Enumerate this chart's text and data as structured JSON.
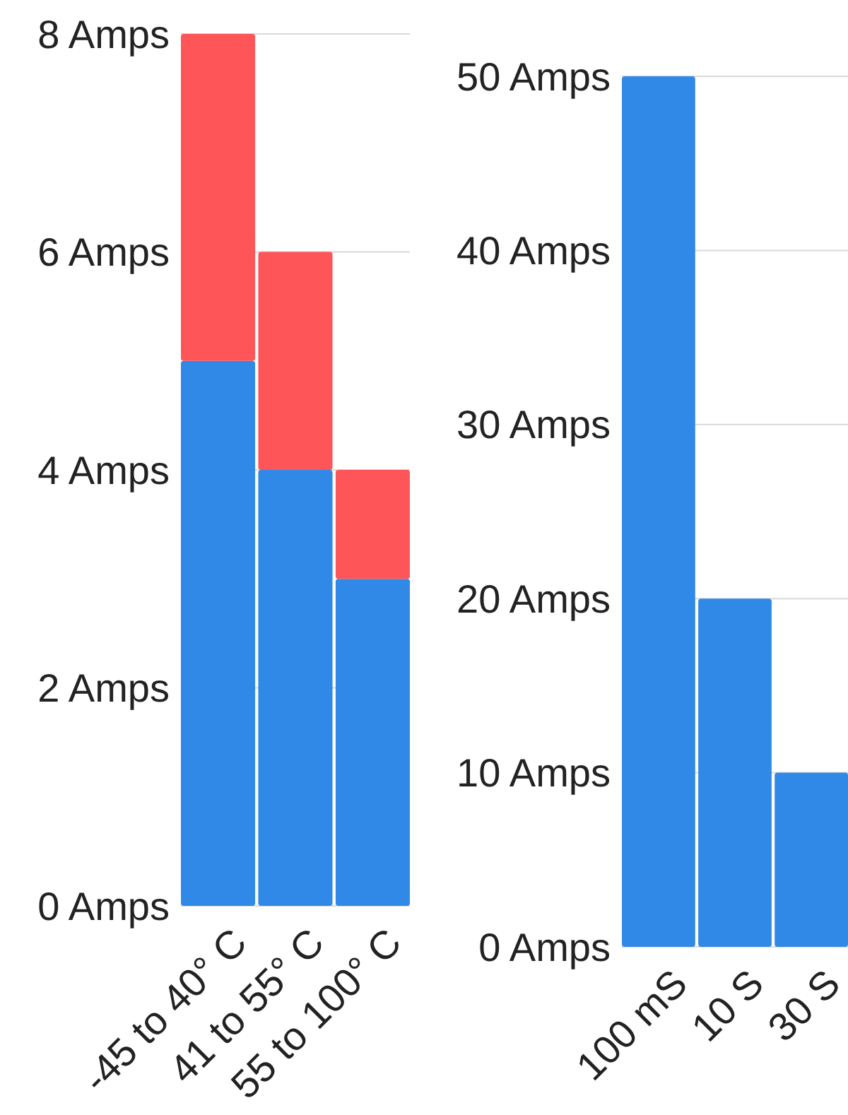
{
  "chart_data": [
    {
      "type": "bar",
      "stacked": true,
      "categories": [
        "-45 to 40° C",
        "41 to 55° C",
        "55 to 100° C"
      ],
      "series": [
        {
          "color": "#3089e6",
          "values": [
            5,
            4,
            3
          ]
        },
        {
          "color": "#fd5558",
          "values": [
            3,
            2,
            1
          ]
        }
      ],
      "ylim": [
        0,
        8
      ],
      "yticks": [
        {
          "value": 0,
          "label": "0 Amps"
        },
        {
          "value": 2,
          "label": "2 Amps"
        },
        {
          "value": 4,
          "label": "4 Amps"
        },
        {
          "value": 6,
          "label": "6 Amps"
        },
        {
          "value": 8,
          "label": "8 Amps"
        }
      ],
      "grid": "y"
    },
    {
      "type": "bar",
      "categories": [
        "100 mS",
        "10 S",
        "30 S"
      ],
      "values": [
        50,
        20,
        10
      ],
      "color": "#3089e6",
      "ylim": [
        0,
        50
      ],
      "yticks": [
        {
          "value": 0,
          "label": "0 Amps"
        },
        {
          "value": 10,
          "label": "10 Amps"
        },
        {
          "value": 20,
          "label": "20 Amps"
        },
        {
          "value": 30,
          "label": "30 Amps"
        },
        {
          "value": 40,
          "label": "40 Amps"
        },
        {
          "value": 50,
          "label": "50 Amps"
        }
      ],
      "grid": "y"
    }
  ]
}
